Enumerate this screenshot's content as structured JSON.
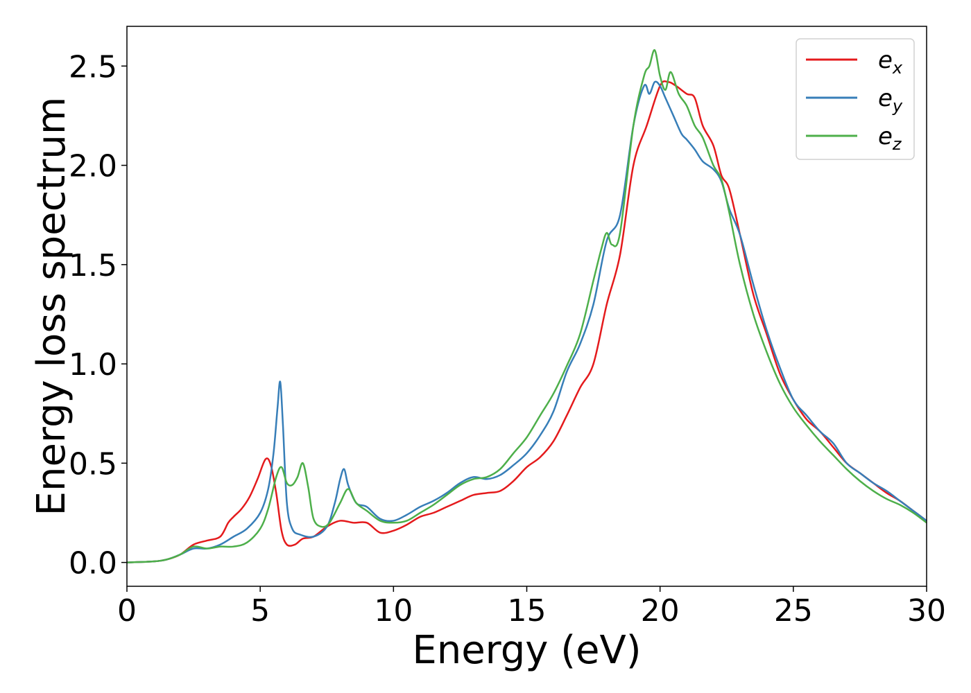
{
  "chart_data": {
    "type": "line",
    "xlabel": "Energy (eV)",
    "ylabel": "Energy loss spectrum",
    "xlim": [
      0,
      30
    ],
    "ylim": [
      -0.12,
      2.7
    ],
    "x_ticks": [
      0,
      5,
      10,
      15,
      20,
      25,
      30
    ],
    "x_tick_labels": [
      "0",
      "5",
      "10",
      "15",
      "20",
      "25",
      "30"
    ],
    "y_ticks": [
      0.0,
      0.5,
      1.0,
      1.5,
      2.0,
      2.5
    ],
    "y_tick_labels": [
      "0.0",
      "0.5",
      "1.0",
      "1.5",
      "2.0",
      "2.5"
    ],
    "grid": false,
    "legend_position": "top-right",
    "series": [
      {
        "name": "e",
        "subscript": "x",
        "color": "#e41a1c",
        "x": [
          0,
          1,
          1.5,
          2,
          2.5,
          3,
          3.5,
          3.8,
          4,
          4.3,
          4.6,
          4.9,
          5.2,
          5.4,
          5.6,
          5.8,
          6,
          6.3,
          6.6,
          7,
          7.5,
          8,
          8.5,
          9,
          9.5,
          10,
          10.5,
          11,
          11.5,
          12,
          12.5,
          13,
          13.5,
          14,
          14.5,
          15,
          15.5,
          16,
          16.5,
          17,
          17.5,
          18,
          18.5,
          19,
          19.5,
          20,
          20.3,
          20.6,
          21,
          21.3,
          21.6,
          22,
          22.3,
          22.6,
          23,
          23.5,
          24,
          24.5,
          25,
          25.5,
          26,
          26.5,
          27,
          27.5,
          28,
          28.5,
          29,
          29.5,
          30
        ],
        "y": [
          0,
          0.005,
          0.015,
          0.04,
          0.09,
          0.11,
          0.13,
          0.2,
          0.23,
          0.27,
          0.33,
          0.42,
          0.52,
          0.49,
          0.35,
          0.16,
          0.09,
          0.09,
          0.12,
          0.13,
          0.18,
          0.21,
          0.2,
          0.2,
          0.15,
          0.16,
          0.19,
          0.23,
          0.25,
          0.28,
          0.31,
          0.34,
          0.35,
          0.36,
          0.41,
          0.48,
          0.53,
          0.61,
          0.74,
          0.88,
          1.0,
          1.3,
          1.55,
          2.0,
          2.2,
          2.4,
          2.42,
          2.4,
          2.36,
          2.34,
          2.2,
          2.1,
          1.95,
          1.88,
          1.65,
          1.35,
          1.15,
          0.95,
          0.82,
          0.72,
          0.66,
          0.58,
          0.5,
          0.45,
          0.4,
          0.35,
          0.31,
          0.26,
          0.21
        ]
      },
      {
        "name": "e",
        "subscript": "y",
        "color": "#377eb8",
        "x": [
          0,
          1,
          1.5,
          2,
          2.5,
          3,
          3.5,
          4,
          4.5,
          5,
          5.3,
          5.5,
          5.65,
          5.75,
          5.85,
          6,
          6.2,
          6.5,
          7,
          7.5,
          7.8,
          8,
          8.15,
          8.3,
          8.6,
          9,
          9.5,
          10,
          10.5,
          11,
          11.5,
          12,
          12.5,
          13,
          13.5,
          14,
          14.5,
          15,
          15.5,
          16,
          16.5,
          17,
          17.5,
          18,
          18.5,
          19,
          19.4,
          19.6,
          19.8,
          20,
          20.2,
          20.5,
          20.8,
          21,
          21.3,
          21.6,
          22,
          22.3,
          22.6,
          23,
          23.5,
          24,
          24.5,
          25,
          25.5,
          26,
          26.5,
          27,
          27.5,
          28,
          28.5,
          29,
          29.5,
          30
        ],
        "y": [
          0,
          0.005,
          0.015,
          0.04,
          0.07,
          0.07,
          0.09,
          0.13,
          0.17,
          0.25,
          0.37,
          0.55,
          0.78,
          0.91,
          0.7,
          0.3,
          0.17,
          0.14,
          0.13,
          0.18,
          0.3,
          0.42,
          0.47,
          0.39,
          0.3,
          0.28,
          0.22,
          0.21,
          0.24,
          0.28,
          0.31,
          0.35,
          0.4,
          0.43,
          0.42,
          0.44,
          0.49,
          0.55,
          0.64,
          0.76,
          0.96,
          1.1,
          1.3,
          1.62,
          1.75,
          2.2,
          2.4,
          2.36,
          2.42,
          2.4,
          2.34,
          2.25,
          2.16,
          2.13,
          2.08,
          2.02,
          1.98,
          1.92,
          1.78,
          1.65,
          1.4,
          1.17,
          0.98,
          0.82,
          0.74,
          0.66,
          0.6,
          0.5,
          0.45,
          0.4,
          0.36,
          0.31,
          0.26,
          0.21
        ]
      },
      {
        "name": "e",
        "subscript": "z",
        "color": "#4daf4a",
        "x": [
          0,
          1,
          1.5,
          2,
          2.5,
          3,
          3.5,
          4,
          4.5,
          5,
          5.3,
          5.6,
          5.8,
          6,
          6.2,
          6.4,
          6.6,
          6.8,
          7,
          7.3,
          7.6,
          8,
          8.3,
          8.6,
          9,
          9.5,
          10,
          10.5,
          11,
          11.5,
          12,
          12.5,
          13,
          13.5,
          14,
          14.5,
          15,
          15.5,
          16,
          16.5,
          17,
          17.5,
          17.8,
          18,
          18.2,
          18.5,
          19,
          19.4,
          19.6,
          19.8,
          20,
          20.2,
          20.4,
          20.7,
          21,
          21.3,
          21.6,
          22,
          22.3,
          22.6,
          23,
          23.5,
          24,
          24.5,
          25,
          25.5,
          26,
          26.5,
          27,
          27.5,
          28,
          28.5,
          29,
          29.5,
          30
        ],
        "y": [
          0,
          0.005,
          0.015,
          0.04,
          0.08,
          0.07,
          0.08,
          0.08,
          0.1,
          0.17,
          0.27,
          0.43,
          0.48,
          0.4,
          0.39,
          0.43,
          0.5,
          0.38,
          0.22,
          0.18,
          0.2,
          0.3,
          0.37,
          0.3,
          0.26,
          0.21,
          0.2,
          0.21,
          0.25,
          0.29,
          0.34,
          0.39,
          0.42,
          0.43,
          0.47,
          0.55,
          0.63,
          0.74,
          0.85,
          0.99,
          1.15,
          1.42,
          1.58,
          1.66,
          1.6,
          1.66,
          2.2,
          2.45,
          2.5,
          2.58,
          2.45,
          2.38,
          2.47,
          2.36,
          2.3,
          2.2,
          2.14,
          2.0,
          1.93,
          1.76,
          1.5,
          1.25,
          1.06,
          0.9,
          0.78,
          0.69,
          0.61,
          0.54,
          0.47,
          0.41,
          0.36,
          0.32,
          0.29,
          0.25,
          0.2
        ]
      }
    ]
  }
}
